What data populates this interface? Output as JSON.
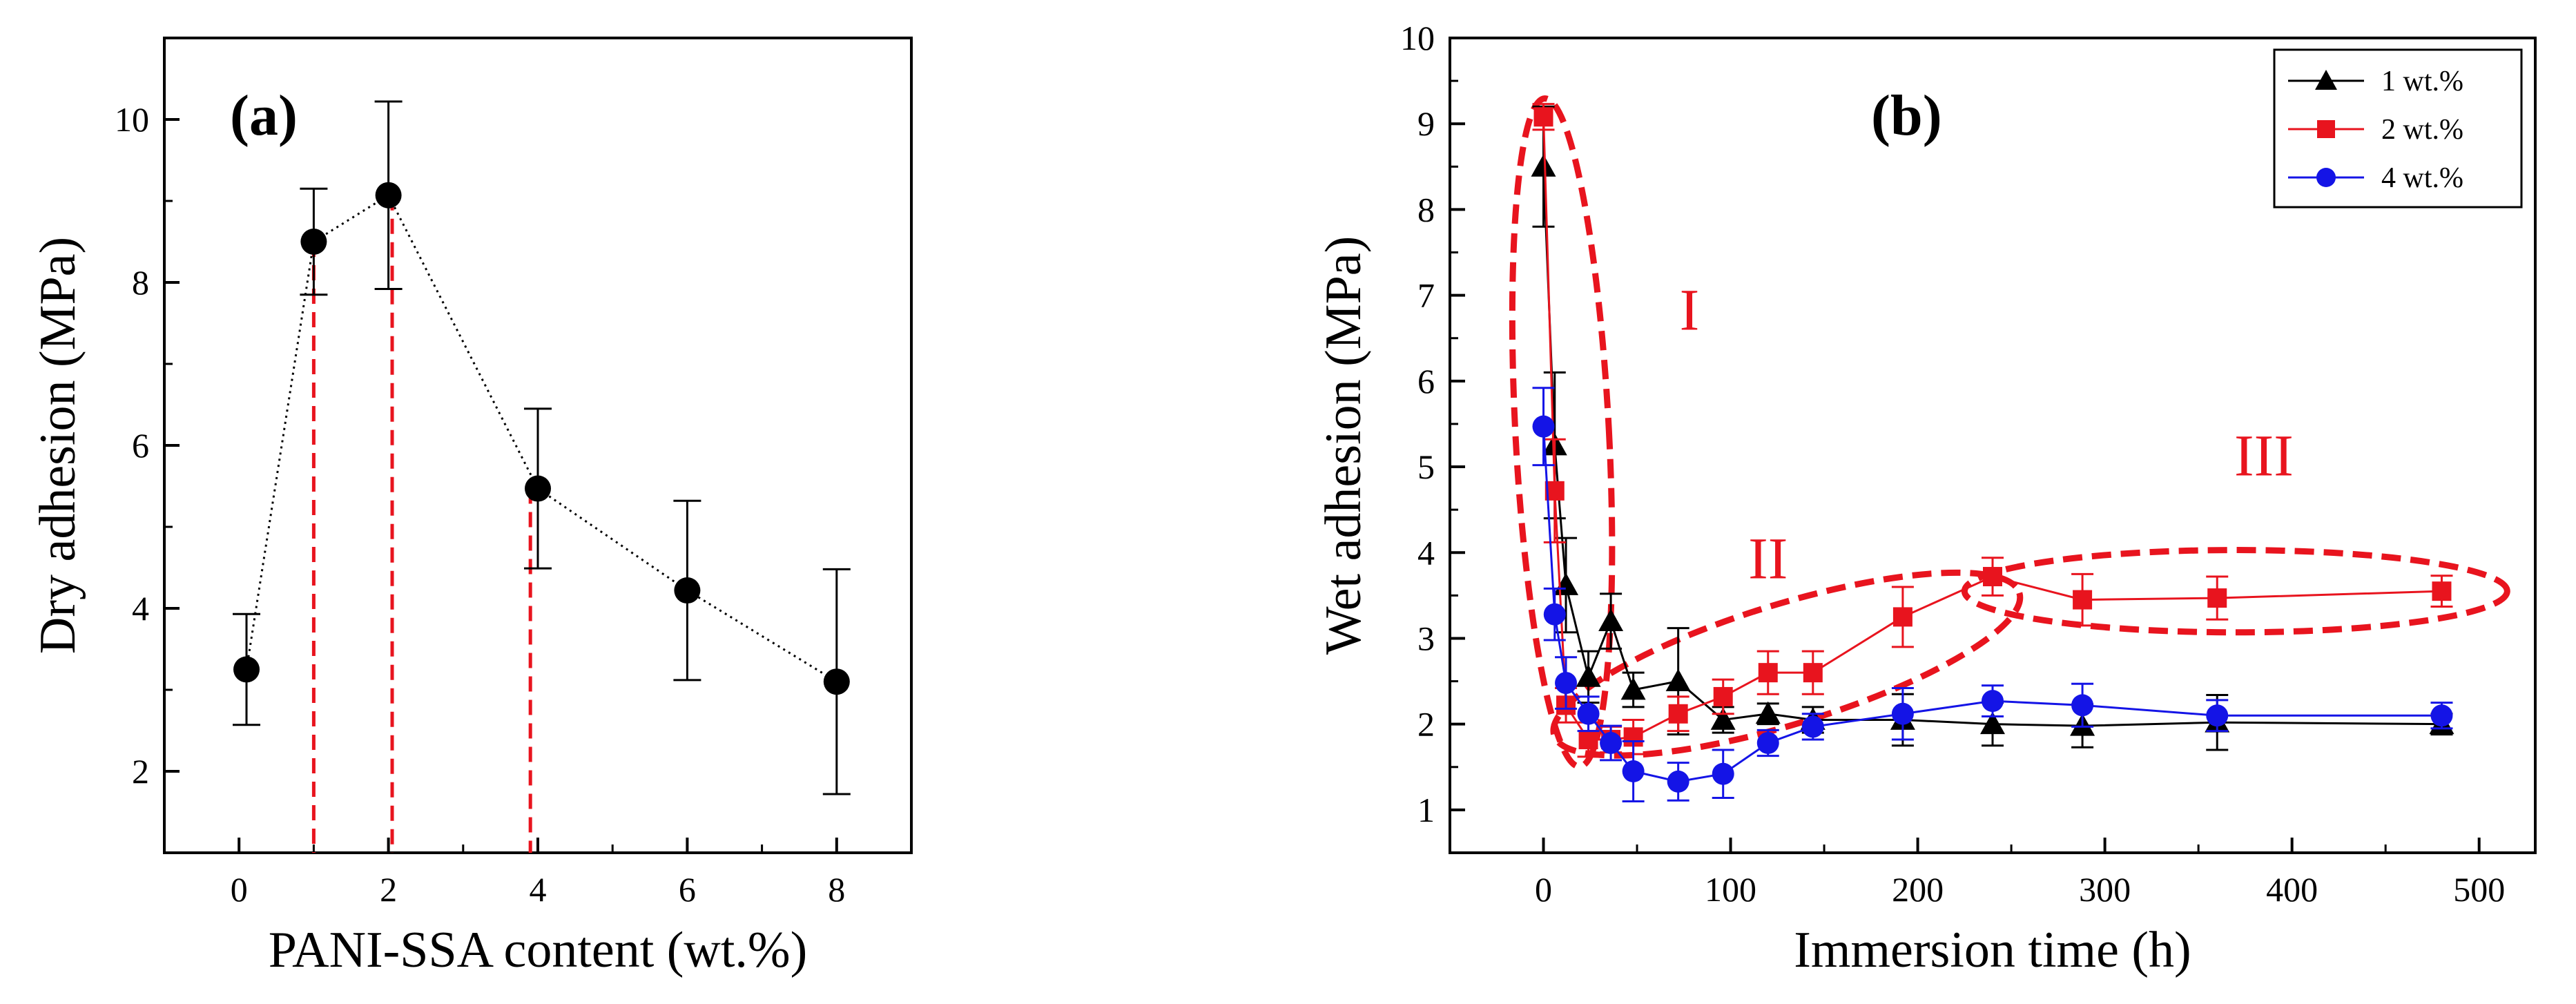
{
  "chart_data": [
    {
      "type": "scatter",
      "panel_label": "(a)",
      "xlabel": "PANI-SSA content (wt.%)",
      "ylabel": "Dry adhesion (MPa)",
      "xlim": [
        -1,
        9
      ],
      "ylim": [
        1,
        11
      ],
      "x_ticks": [
        0,
        2,
        4,
        6,
        8
      ],
      "y_ticks": [
        2,
        4,
        6,
        8,
        10
      ],
      "grid": false,
      "connector": "dotted",
      "series": [
        {
          "name": "Dry adhesion",
          "color": "#000000",
          "points": [
            {
              "x": 0.1,
              "y": 3.25,
              "err": 0.68
            },
            {
              "x": 1.0,
              "y": 8.5,
              "err": 0.65
            },
            {
              "x": 2.0,
              "y": 9.07,
              "err": 1.15
            },
            {
              "x": 4.0,
              "y": 5.47,
              "err": 0.98
            },
            {
              "x": 6.0,
              "y": 4.22,
              "err": 1.1
            },
            {
              "x": 8.0,
              "y": 3.1,
              "err": 1.38
            }
          ]
        }
      ],
      "reference_lines": {
        "color": "#e8141e",
        "style": "dashed",
        "lines": [
          {
            "x": 1.0,
            "y_top": 8.5
          },
          {
            "x": 2.05,
            "y_top": 9.07
          },
          {
            "x": 3.9,
            "y_top": 5.47
          }
        ]
      }
    },
    {
      "type": "line",
      "panel_label": "(b)",
      "xlabel": "Immersion time (h)",
      "ylabel": "Wet adhesion (MPa)",
      "xlim": [
        -50,
        530
      ],
      "ylim": [
        0.5,
        10
      ],
      "x_ticks": [
        0,
        100,
        200,
        300,
        400,
        500
      ],
      "y_ticks": [
        1,
        2,
        3,
        4,
        5,
        6,
        7,
        8,
        9,
        10
      ],
      "grid": false,
      "legend_position": "top-right",
      "series": [
        {
          "name": "1 wt.%",
          "color": "#000000",
          "marker": "triangle",
          "points": [
            {
              "x": 0,
              "y": 8.5,
              "err": 0.7
            },
            {
              "x": 6,
              "y": 5.25,
              "err": 0.85
            },
            {
              "x": 12,
              "y": 3.62,
              "err": 0.55
            },
            {
              "x": 24,
              "y": 2.55,
              "err": 0.3
            },
            {
              "x": 36,
              "y": 3.2,
              "err": 0.32
            },
            {
              "x": 48,
              "y": 2.4,
              "err": 0.2
            },
            {
              "x": 72,
              "y": 2.5,
              "err": 0.62
            },
            {
              "x": 96,
              "y": 2.05,
              "err": 0.15
            },
            {
              "x": 120,
              "y": 2.12,
              "err": 0.12
            },
            {
              "x": 144,
              "y": 2.05,
              "err": 0.15
            },
            {
              "x": 192,
              "y": 2.05,
              "err": 0.3
            },
            {
              "x": 240,
              "y": 2.0,
              "err": 0.25
            },
            {
              "x": 288,
              "y": 1.98,
              "err": 0.25
            },
            {
              "x": 360,
              "y": 2.02,
              "err": 0.32
            },
            {
              "x": 480,
              "y": 2.0,
              "err": 0.12
            }
          ]
        },
        {
          "name": "2 wt.%",
          "color": "#e8141e",
          "marker": "square",
          "points": [
            {
              "x": 0,
              "y": 9.08,
              "err": 0.15
            },
            {
              "x": 6,
              "y": 4.72,
              "err": 0.6
            },
            {
              "x": 12,
              "y": 2.22,
              "err": 0.2
            },
            {
              "x": 24,
              "y": 1.82,
              "err": 0.2
            },
            {
              "x": 36,
              "y": 1.82,
              "err": 0.15
            },
            {
              "x": 48,
              "y": 1.85,
              "err": 0.2
            },
            {
              "x": 72,
              "y": 2.12,
              "err": 0.2
            },
            {
              "x": 96,
              "y": 2.32,
              "err": 0.2
            },
            {
              "x": 120,
              "y": 2.6,
              "err": 0.25
            },
            {
              "x": 144,
              "y": 2.6,
              "err": 0.25
            },
            {
              "x": 192,
              "y": 3.25,
              "err": 0.35
            },
            {
              "x": 240,
              "y": 3.72,
              "err": 0.22
            },
            {
              "x": 288,
              "y": 3.45,
              "err": 0.3
            },
            {
              "x": 360,
              "y": 3.47,
              "err": 0.25
            },
            {
              "x": 480,
              "y": 3.55,
              "err": 0.18
            }
          ]
        },
        {
          "name": "4 wt.%",
          "color": "#1414e6",
          "marker": "circle",
          "points": [
            {
              "x": 0,
              "y": 5.47,
              "err": 0.45
            },
            {
              "x": 6,
              "y": 3.28,
              "err": 0.3
            },
            {
              "x": 12,
              "y": 2.48,
              "err": 0.3
            },
            {
              "x": 24,
              "y": 2.12,
              "err": 0.2
            },
            {
              "x": 36,
              "y": 1.78,
              "err": 0.2
            },
            {
              "x": 48,
              "y": 1.45,
              "err": 0.35
            },
            {
              "x": 72,
              "y": 1.33,
              "err": 0.22
            },
            {
              "x": 96,
              "y": 1.42,
              "err": 0.28
            },
            {
              "x": 120,
              "y": 1.78,
              "err": 0.15
            },
            {
              "x": 144,
              "y": 1.97,
              "err": 0.15
            },
            {
              "x": 192,
              "y": 2.12,
              "err": 0.3
            },
            {
              "x": 240,
              "y": 2.27,
              "err": 0.18
            },
            {
              "x": 288,
              "y": 2.22,
              "err": 0.25
            },
            {
              "x": 360,
              "y": 2.1,
              "err": 0.18
            },
            {
              "x": 480,
              "y": 2.1,
              "err": 0.15
            }
          ]
        }
      ],
      "annotations": [
        {
          "text": "I",
          "x": 78,
          "y": 6.6,
          "color": "#e8141e"
        },
        {
          "text": "II",
          "x": 120,
          "y": 3.7,
          "color": "#e8141e"
        },
        {
          "text": "III",
          "x": 385,
          "y": 4.9,
          "color": "#e8141e"
        }
      ],
      "regions": {
        "color": "#e8141e",
        "style": "dashed",
        "ellipses": [
          {
            "name": "region-I",
            "cx": 10,
            "cy": 5.4,
            "rx": 25,
            "ry": 3.9,
            "angle": -3
          },
          {
            "name": "region-II",
            "cx": 130,
            "cy": 2.7,
            "rx": 130,
            "ry": 0.7,
            "angle": -17
          },
          {
            "name": "region-III",
            "cx": 370,
            "cy": 3.55,
            "rx": 145,
            "ry": 0.48,
            "angle": 0
          }
        ]
      }
    }
  ]
}
